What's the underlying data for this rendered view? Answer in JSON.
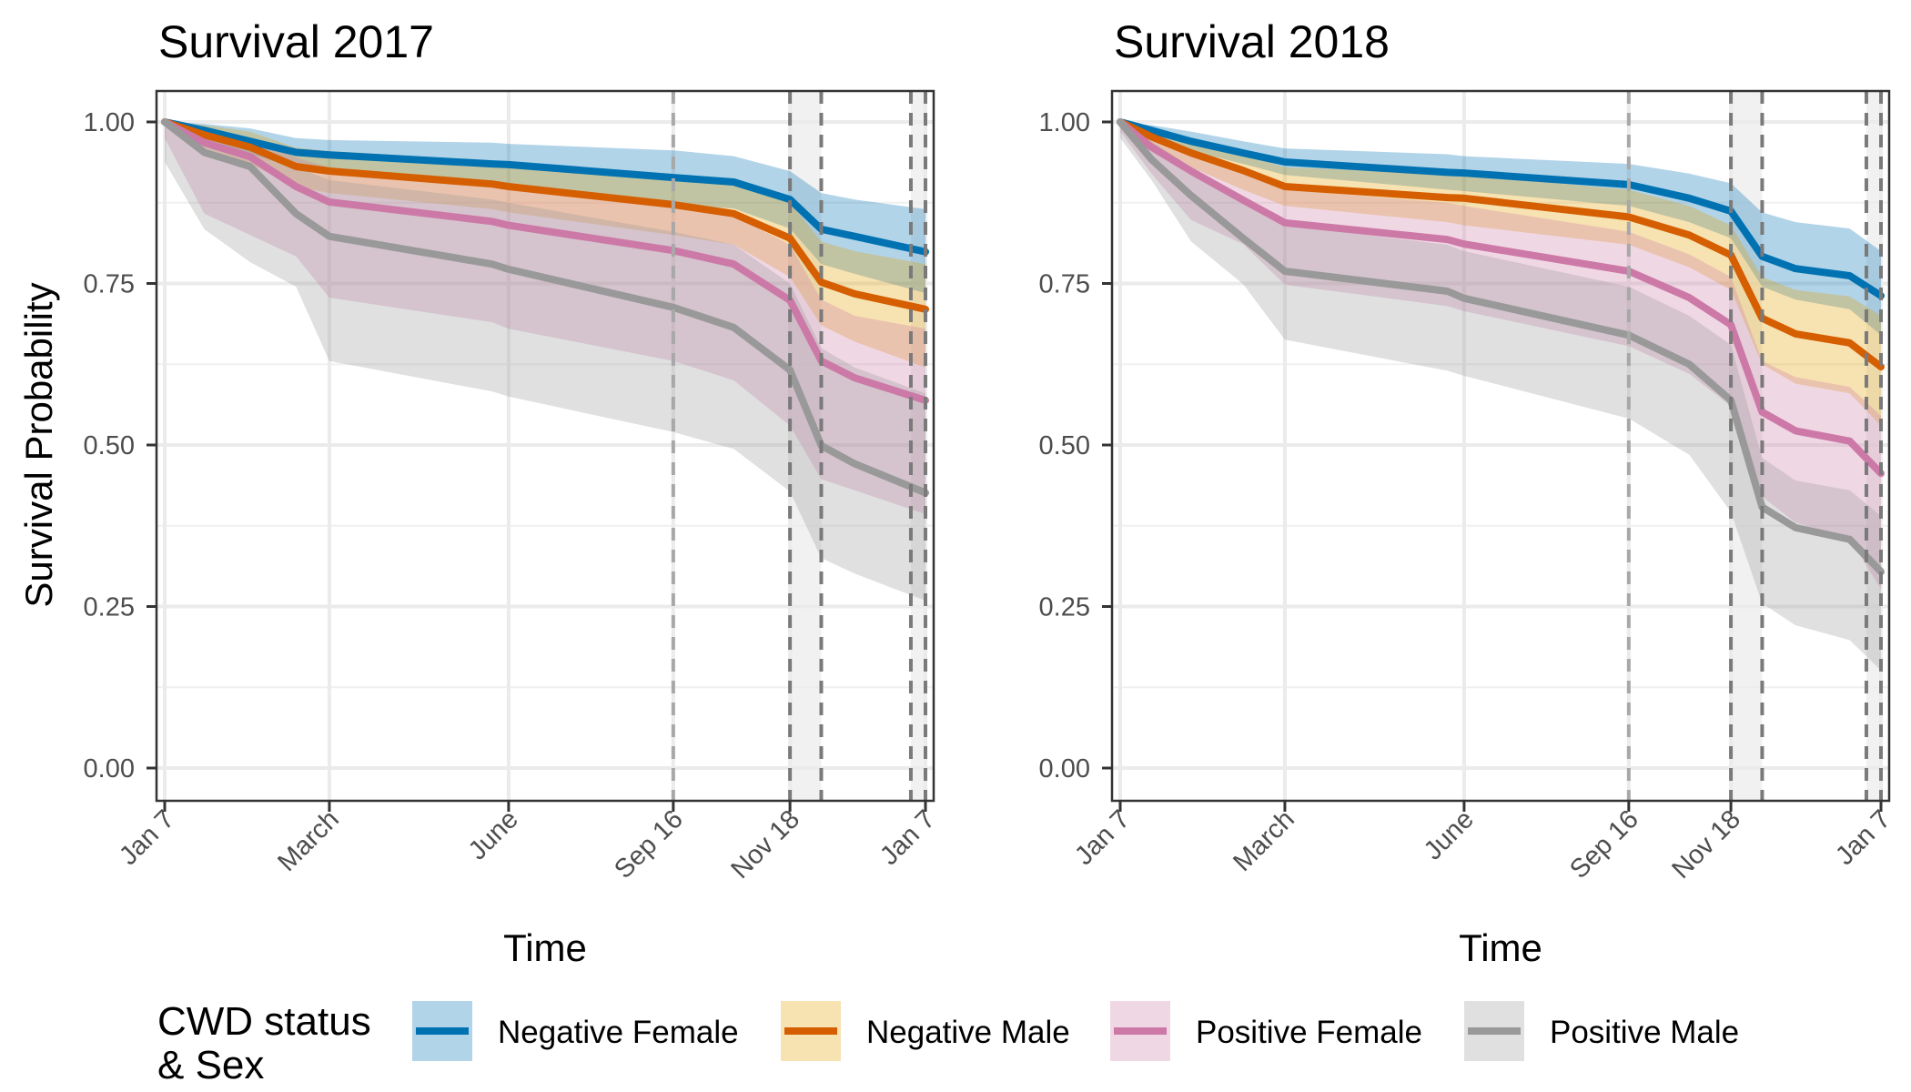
{
  "chart_data": {
    "type": "line",
    "x_unit": "days since Jan 7",
    "legend": {
      "title_lines": [
        "CWD status",
        "& Sex"
      ],
      "placement": "bottom",
      "entries": [
        {
          "key": "neg_female",
          "label": "Negative Female",
          "color": "#0072B2",
          "fill": "#0072B2"
        },
        {
          "key": "neg_male",
          "label": "Negative Male",
          "color": "#D55E00",
          "fill": "#E69F00"
        },
        {
          "key": "pos_female",
          "label": "Positive Female",
          "color": "#CC79A7",
          "fill": "#CC79A7"
        },
        {
          "key": "pos_male",
          "label": "Positive Male",
          "color": "#999999",
          "fill": "#999999"
        }
      ]
    },
    "panels": [
      {
        "title": "Survival 2017",
        "xlabel": "Time",
        "ylabel": "Survival Probability",
        "ylim": [
          -0.05,
          1.05
        ],
        "xlim": [
          0,
          365
        ],
        "grid": true,
        "yticks": [
          0,
          0.25,
          0.5,
          0.75,
          1.0
        ],
        "ytick_labels": [
          "0.00",
          "0.25",
          "0.50",
          "0.75",
          "1.00"
        ],
        "xticks": [
          0,
          79,
          165,
          244,
          300,
          365
        ],
        "xtick_labels": [
          "Jan 7",
          "March",
          "June",
          "Sep 16",
          "Nov 18",
          "Jan 7"
        ],
        "x_major_grid": [
          79,
          165
        ],
        "reference_lines": [
          {
            "x": 244,
            "style": "light-dashed"
          },
          {
            "x": 300,
            "style": "dashed"
          },
          {
            "x": 315,
            "style": "dashed"
          },
          {
            "x": 358,
            "style": "dashed"
          },
          {
            "x": 365,
            "style": "dashed"
          }
        ],
        "shaded_periods": [
          [
            300,
            315
          ],
          [
            358,
            365
          ]
        ],
        "x": [
          0,
          19,
          41,
          63,
          79,
          157,
          165,
          244,
          273,
          300,
          315,
          331,
          365
        ],
        "series": [
          {
            "key": "neg_female",
            "name": "Negative Female",
            "values": [
              1.0,
              0.987,
              0.97,
              0.953,
              0.949,
              0.935,
              0.934,
              0.914,
              0.907,
              0.88,
              0.834,
              0.823,
              0.799
            ],
            "upper": [
              1.0,
              0.997,
              0.99,
              0.975,
              0.972,
              0.968,
              0.966,
              0.956,
              0.947,
              0.924,
              0.89,
              0.88,
              0.865
            ],
            "lower": [
              1.0,
              0.975,
              0.95,
              0.93,
              0.925,
              0.902,
              0.9,
              0.872,
              0.866,
              0.835,
              0.78,
              0.765,
              0.735
            ]
          },
          {
            "key": "neg_male",
            "name": "Negative Male",
            "values": [
              1.0,
              0.98,
              0.961,
              0.931,
              0.924,
              0.904,
              0.9,
              0.872,
              0.858,
              0.82,
              0.752,
              0.734,
              0.71
            ],
            "upper": [
              1.0,
              0.995,
              0.985,
              0.96,
              0.955,
              0.94,
              0.937,
              0.915,
              0.905,
              0.875,
              0.815,
              0.8,
              0.78
            ],
            "lower": [
              1.0,
              0.96,
              0.935,
              0.9,
              0.89,
              0.865,
              0.86,
              0.825,
              0.81,
              0.76,
              0.685,
              0.66,
              0.62
            ]
          },
          {
            "key": "pos_female",
            "name": "Positive Female",
            "values": [
              1.0,
              0.968,
              0.946,
              0.9,
              0.876,
              0.846,
              0.84,
              0.801,
              0.78,
              0.724,
              0.63,
              0.604,
              0.569
            ],
            "upper": [
              1.0,
              0.99,
              0.975,
              0.945,
              0.93,
              0.905,
              0.9,
              0.87,
              0.855,
              0.81,
              0.725,
              0.7,
              0.68
            ],
            "lower": [
              0.975,
              0.858,
              0.825,
              0.792,
              0.728,
              0.69,
              0.68,
              0.63,
              0.6,
              0.53,
              0.447,
              0.43,
              0.393
            ]
          },
          {
            "key": "pos_male",
            "name": "Positive Male",
            "values": [
              1.0,
              0.953,
              0.931,
              0.858,
              0.823,
              0.78,
              0.772,
              0.713,
              0.682,
              0.616,
              0.499,
              0.471,
              0.426
            ],
            "upper": [
              1.0,
              0.985,
              0.97,
              0.93,
              0.91,
              0.88,
              0.875,
              0.83,
              0.81,
              0.75,
              0.65,
              0.62,
              0.58
            ],
            "lower": [
              0.938,
              0.834,
              0.783,
              0.745,
              0.63,
              0.583,
              0.575,
              0.52,
              0.494,
              0.428,
              0.325,
              0.301,
              0.259
            ]
          }
        ]
      },
      {
        "title": "Survival 2018",
        "xlabel": "Time",
        "ylabel": "",
        "ylim": [
          -0.05,
          1.05
        ],
        "xlim": [
          0,
          365
        ],
        "grid": true,
        "yticks": [
          0,
          0.25,
          0.5,
          0.75,
          1.0
        ],
        "ytick_labels": [
          "0.00",
          "0.25",
          "0.50",
          "0.75",
          "1.00"
        ],
        "xticks": [
          0,
          79,
          165,
          244,
          293,
          365
        ],
        "xtick_labels": [
          "Jan 7",
          "March",
          "June",
          "Sep 16",
          "Nov 18",
          "Jan 7"
        ],
        "x_major_grid": [
          79,
          165
        ],
        "reference_lines": [
          {
            "x": 244,
            "style": "light-dashed"
          },
          {
            "x": 293,
            "style": "dashed"
          },
          {
            "x": 308,
            "style": "dashed"
          },
          {
            "x": 358,
            "style": "dashed"
          },
          {
            "x": 365,
            "style": "dashed"
          }
        ],
        "shaded_periods": [
          [
            293,
            308
          ],
          [
            358,
            365
          ]
        ],
        "x": [
          0,
          15,
          34,
          59,
          79,
          157,
          165,
          244,
          273,
          293,
          308,
          324,
          350,
          365
        ],
        "series": [
          {
            "key": "neg_female",
            "name": "Negative Female",
            "values": [
              1.0,
              0.987,
              0.97,
              0.952,
              0.938,
              0.922,
              0.921,
              0.903,
              0.882,
              0.862,
              0.792,
              0.773,
              0.762,
              0.731
            ],
            "upper": [
              1.0,
              0.995,
              0.985,
              0.97,
              0.959,
              0.95,
              0.947,
              0.935,
              0.92,
              0.905,
              0.86,
              0.845,
              0.835,
              0.8
            ],
            "lower": [
              1.0,
              0.978,
              0.955,
              0.935,
              0.918,
              0.895,
              0.893,
              0.87,
              0.845,
              0.82,
              0.745,
              0.725,
              0.71,
              0.67
            ]
          },
          {
            "key": "neg_male",
            "name": "Negative Male",
            "values": [
              1.0,
              0.977,
              0.952,
              0.925,
              0.9,
              0.883,
              0.882,
              0.853,
              0.825,
              0.794,
              0.696,
              0.672,
              0.658,
              0.621
            ],
            "upper": [
              1.0,
              0.99,
              0.97,
              0.95,
              0.93,
              0.92,
              0.918,
              0.895,
              0.87,
              0.84,
              0.76,
              0.74,
              0.73,
              0.7
            ],
            "lower": [
              1.0,
              0.96,
              0.93,
              0.895,
              0.87,
              0.845,
              0.84,
              0.81,
              0.775,
              0.74,
              0.625,
              0.595,
              0.58,
              0.53
            ]
          },
          {
            "key": "pos_female",
            "name": "Positive Female",
            "values": [
              1.0,
              0.961,
              0.924,
              0.879,
              0.844,
              0.818,
              0.811,
              0.769,
              0.728,
              0.686,
              0.551,
              0.522,
              0.506,
              0.456
            ],
            "upper": [
              1.0,
              0.985,
              0.955,
              0.925,
              0.895,
              0.875,
              0.87,
              0.83,
              0.795,
              0.76,
              0.63,
              0.605,
              0.59,
              0.545
            ],
            "lower": [
              0.985,
              0.92,
              0.848,
              0.811,
              0.748,
              0.715,
              0.707,
              0.653,
              0.61,
              0.56,
              0.42,
              0.38,
              0.355,
              0.277
            ]
          },
          {
            "key": "pos_male",
            "name": "Positive Male",
            "values": [
              1.0,
              0.942,
              0.886,
              0.82,
              0.769,
              0.738,
              0.727,
              0.67,
              0.625,
              0.569,
              0.404,
              0.372,
              0.354,
              0.304
            ],
            "upper": [
              1.0,
              0.97,
              0.93,
              0.88,
              0.84,
              0.81,
              0.8,
              0.745,
              0.7,
              0.655,
              0.48,
              0.445,
              0.43,
              0.39
            ],
            "lower": [
              0.975,
              0.91,
              0.815,
              0.749,
              0.663,
              0.615,
              0.607,
              0.541,
              0.485,
              0.396,
              0.255,
              0.221,
              0.198,
              0.151
            ]
          }
        ]
      }
    ]
  }
}
